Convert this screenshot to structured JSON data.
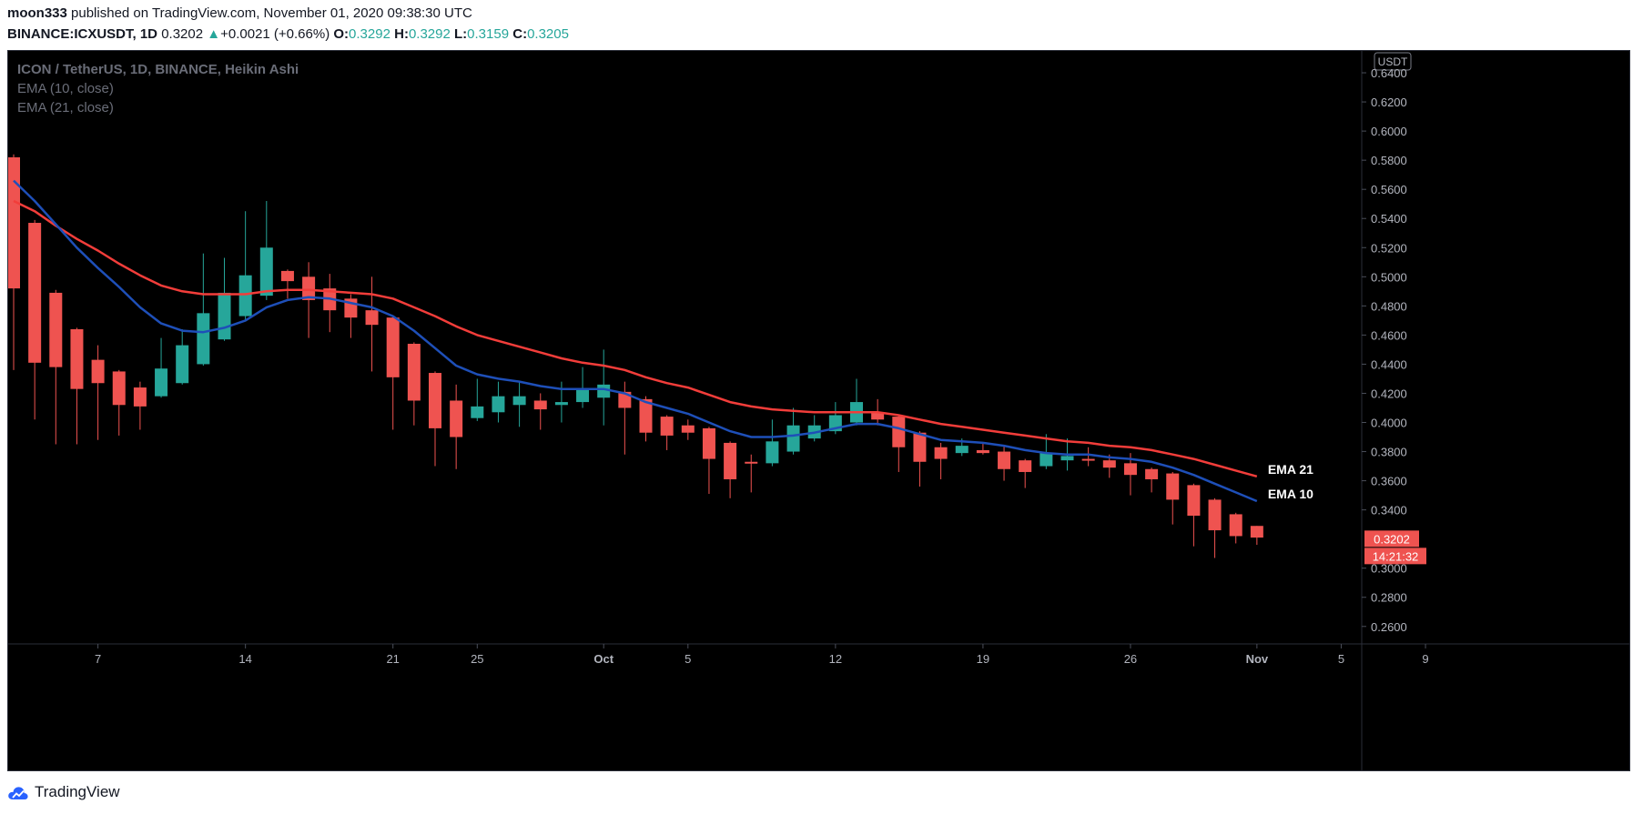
{
  "header": {
    "author": "moon333",
    "published_text": "published on TradingView.com, November 01, 2020 09:38:30 UTC",
    "symbol": "BINANCE:ICXUSDT, 1D",
    "last": "0.3202",
    "change": "+0.0021 (+0.66%)",
    "o_label": "O:",
    "o": "0.3292",
    "h_label": "H:",
    "h": "0.3292",
    "l_label": "L:",
    "l": "0.3159",
    "c_label": "C:",
    "c": "0.3205"
  },
  "legend": {
    "title": "ICON / TetherUS, 1D, BINANCE, Heikin Ashi",
    "ema10": "EMA (10, close)",
    "ema21": "EMA (21, close)"
  },
  "footer": {
    "brand": "TradingView",
    "logo_icon": "tradingview-cloud-logo-icon"
  },
  "chart_data": {
    "type": "candlestick",
    "currency_badge": "USDT",
    "ylim": [
      0.248,
      0.655
    ],
    "y_ticks": [
      "0.6400",
      "0.6200",
      "0.6000",
      "0.5800",
      "0.5600",
      "0.5400",
      "0.5200",
      "0.5000",
      "0.4800",
      "0.4600",
      "0.4400",
      "0.4200",
      "0.4000",
      "0.3800",
      "0.3600",
      "0.3400",
      "0.3000",
      "0.2800",
      "0.2600"
    ],
    "x_ticks": [
      {
        "label": "7",
        "day": 4
      },
      {
        "label": "14",
        "day": 11
      },
      {
        "label": "21",
        "day": 18
      },
      {
        "label": "25",
        "day": 22
      },
      {
        "label": "Oct",
        "day": 28
      },
      {
        "label": "5",
        "day": 32
      },
      {
        "label": "12",
        "day": 39
      },
      {
        "label": "19",
        "day": 46
      },
      {
        "label": "26",
        "day": 53
      },
      {
        "label": "Nov",
        "day": 59
      },
      {
        "label": "5",
        "day": 63
      },
      {
        "label": "9",
        "day": 67
      }
    ],
    "candles": [
      {
        "o": 0.582,
        "h": 0.584,
        "l": 0.436,
        "c": 0.492
      },
      {
        "o": 0.537,
        "h": 0.539,
        "l": 0.402,
        "c": 0.441
      },
      {
        "o": 0.489,
        "h": 0.491,
        "l": 0.385,
        "c": 0.438
      },
      {
        "o": 0.464,
        "h": 0.465,
        "l": 0.385,
        "c": 0.423
      },
      {
        "o": 0.443,
        "h": 0.453,
        "l": 0.388,
        "c": 0.427
      },
      {
        "o": 0.435,
        "h": 0.436,
        "l": 0.391,
        "c": 0.412
      },
      {
        "o": 0.424,
        "h": 0.428,
        "l": 0.395,
        "c": 0.411
      },
      {
        "o": 0.418,
        "h": 0.458,
        "l": 0.417,
        "c": 0.437
      },
      {
        "o": 0.427,
        "h": 0.464,
        "l": 0.426,
        "c": 0.453
      },
      {
        "o": 0.44,
        "h": 0.516,
        "l": 0.439,
        "c": 0.475
      },
      {
        "o": 0.457,
        "h": 0.513,
        "l": 0.456,
        "c": 0.489
      },
      {
        "o": 0.473,
        "h": 0.545,
        "l": 0.47,
        "c": 0.501
      },
      {
        "o": 0.487,
        "h": 0.552,
        "l": 0.484,
        "c": 0.52
      },
      {
        "o": 0.504,
        "h": 0.505,
        "l": 0.485,
        "c": 0.497
      },
      {
        "o": 0.5,
        "h": 0.51,
        "l": 0.458,
        "c": 0.484
      },
      {
        "o": 0.492,
        "h": 0.502,
        "l": 0.462,
        "c": 0.477
      },
      {
        "o": 0.485,
        "h": 0.488,
        "l": 0.458,
        "c": 0.472
      },
      {
        "o": 0.477,
        "h": 0.5,
        "l": 0.435,
        "c": 0.467
      },
      {
        "o": 0.472,
        "h": 0.473,
        "l": 0.395,
        "c": 0.431
      },
      {
        "o": 0.454,
        "h": 0.455,
        "l": 0.398,
        "c": 0.415
      },
      {
        "o": 0.434,
        "h": 0.435,
        "l": 0.37,
        "c": 0.396
      },
      {
        "o": 0.415,
        "h": 0.426,
        "l": 0.368,
        "c": 0.39
      },
      {
        "o": 0.403,
        "h": 0.43,
        "l": 0.401,
        "c": 0.411
      },
      {
        "o": 0.407,
        "h": 0.428,
        "l": 0.4,
        "c": 0.418
      },
      {
        "o": 0.412,
        "h": 0.428,
        "l": 0.397,
        "c": 0.418
      },
      {
        "o": 0.415,
        "h": 0.42,
        "l": 0.395,
        "c": 0.409
      },
      {
        "o": 0.412,
        "h": 0.428,
        "l": 0.4,
        "c": 0.414
      },
      {
        "o": 0.414,
        "h": 0.438,
        "l": 0.41,
        "c": 0.423
      },
      {
        "o": 0.417,
        "h": 0.45,
        "l": 0.398,
        "c": 0.426
      },
      {
        "o": 0.421,
        "h": 0.428,
        "l": 0.378,
        "c": 0.41
      },
      {
        "o": 0.416,
        "h": 0.418,
        "l": 0.387,
        "c": 0.393
      },
      {
        "o": 0.404,
        "h": 0.405,
        "l": 0.381,
        "c": 0.391
      },
      {
        "o": 0.398,
        "h": 0.402,
        "l": 0.388,
        "c": 0.393
      },
      {
        "o": 0.396,
        "h": 0.397,
        "l": 0.351,
        "c": 0.375
      },
      {
        "o": 0.386,
        "h": 0.387,
        "l": 0.348,
        "c": 0.361
      },
      {
        "o": 0.373,
        "h": 0.378,
        "l": 0.352,
        "c": 0.372
      },
      {
        "o": 0.372,
        "h": 0.402,
        "l": 0.37,
        "c": 0.387
      },
      {
        "o": 0.38,
        "h": 0.41,
        "l": 0.378,
        "c": 0.398
      },
      {
        "o": 0.389,
        "h": 0.405,
        "l": 0.387,
        "c": 0.398
      },
      {
        "o": 0.394,
        "h": 0.414,
        "l": 0.392,
        "c": 0.405
      },
      {
        "o": 0.4,
        "h": 0.43,
        "l": 0.398,
        "c": 0.414
      },
      {
        "o": 0.407,
        "h": 0.416,
        "l": 0.398,
        "c": 0.402
      },
      {
        "o": 0.404,
        "h": 0.405,
        "l": 0.366,
        "c": 0.383
      },
      {
        "o": 0.393,
        "h": 0.394,
        "l": 0.356,
        "c": 0.373
      },
      {
        "o": 0.383,
        "h": 0.386,
        "l": 0.361,
        "c": 0.375
      },
      {
        "o": 0.379,
        "h": 0.389,
        "l": 0.377,
        "c": 0.384
      },
      {
        "o": 0.381,
        "h": 0.386,
        "l": 0.378,
        "c": 0.379
      },
      {
        "o": 0.38,
        "h": 0.384,
        "l": 0.36,
        "c": 0.368
      },
      {
        "o": 0.374,
        "h": 0.375,
        "l": 0.355,
        "c": 0.366
      },
      {
        "o": 0.37,
        "h": 0.392,
        "l": 0.368,
        "c": 0.379
      },
      {
        "o": 0.374,
        "h": 0.389,
        "l": 0.367,
        "c": 0.377
      },
      {
        "o": 0.375,
        "h": 0.383,
        "l": 0.37,
        "c": 0.374
      },
      {
        "o": 0.374,
        "h": 0.378,
        "l": 0.362,
        "c": 0.369
      },
      {
        "o": 0.372,
        "h": 0.379,
        "l": 0.35,
        "c": 0.364
      },
      {
        "o": 0.368,
        "h": 0.369,
        "l": 0.352,
        "c": 0.361
      },
      {
        "o": 0.365,
        "h": 0.366,
        "l": 0.33,
        "c": 0.347
      },
      {
        "o": 0.357,
        "h": 0.358,
        "l": 0.315,
        "c": 0.336
      },
      {
        "o": 0.347,
        "h": 0.348,
        "l": 0.307,
        "c": 0.326
      },
      {
        "o": 0.337,
        "h": 0.338,
        "l": 0.317,
        "c": 0.322
      },
      {
        "o": 0.329,
        "h": 0.329,
        "l": 0.316,
        "c": 0.321
      }
    ],
    "ema10": [
      0.566,
      0.552,
      0.536,
      0.52,
      0.506,
      0.493,
      0.479,
      0.468,
      0.463,
      0.462,
      0.465,
      0.47,
      0.479,
      0.484,
      0.486,
      0.485,
      0.482,
      0.479,
      0.473,
      0.463,
      0.451,
      0.439,
      0.433,
      0.43,
      0.428,
      0.425,
      0.423,
      0.423,
      0.423,
      0.42,
      0.414,
      0.41,
      0.406,
      0.4,
      0.394,
      0.39,
      0.39,
      0.391,
      0.393,
      0.396,
      0.399,
      0.399,
      0.396,
      0.392,
      0.388,
      0.387,
      0.386,
      0.384,
      0.381,
      0.379,
      0.378,
      0.378,
      0.376,
      0.375,
      0.373,
      0.369,
      0.364,
      0.358,
      0.352,
      0.346
    ],
    "ema21": [
      0.552,
      0.545,
      0.535,
      0.526,
      0.518,
      0.509,
      0.501,
      0.494,
      0.49,
      0.488,
      0.488,
      0.488,
      0.49,
      0.491,
      0.491,
      0.49,
      0.489,
      0.488,
      0.485,
      0.479,
      0.473,
      0.466,
      0.46,
      0.456,
      0.452,
      0.448,
      0.444,
      0.441,
      0.439,
      0.436,
      0.431,
      0.427,
      0.424,
      0.419,
      0.414,
      0.411,
      0.409,
      0.408,
      0.407,
      0.407,
      0.407,
      0.407,
      0.405,
      0.402,
      0.399,
      0.397,
      0.395,
      0.393,
      0.391,
      0.389,
      0.387,
      0.386,
      0.384,
      0.383,
      0.381,
      0.378,
      0.375,
      0.371,
      0.367,
      0.363
    ],
    "ema_labels": {
      "ema21": "EMA 21",
      "ema10": "EMA 10"
    },
    "last_price_label": "0.3202",
    "countdown_label": "14:21:32",
    "colors": {
      "up": "#26a69a",
      "down": "#ef5350",
      "ema10": "#1e4fb8",
      "ema21": "#f23d3a",
      "axis_text": "#b2b5be",
      "background": "#000000"
    }
  }
}
